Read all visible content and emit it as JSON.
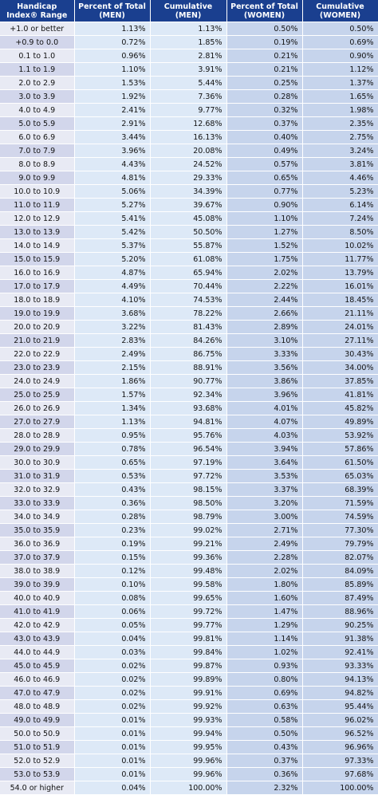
{
  "headers": {
    "range": "Handicap Index® Range",
    "pct_men": "Percent of Total (MEN)",
    "cum_men": "Cumulative (MEN)",
    "pct_women": "Percent of Total (WOMEN)",
    "cum_women": "Cumulative (WOMEN)"
  },
  "rows": [
    {
      "range": "+1.0 or better",
      "pct_men": "1.13%",
      "cum_men": "1.13%",
      "pct_women": "0.50%",
      "cum_women": "0.50%"
    },
    {
      "range": "+0.9 to 0.0",
      "pct_men": "0.72%",
      "cum_men": "1.85%",
      "pct_women": "0.19%",
      "cum_women": "0.69%"
    },
    {
      "range": "0.1 to 1.0",
      "pct_men": "0.96%",
      "cum_men": "2.81%",
      "pct_women": "0.21%",
      "cum_women": "0.90%"
    },
    {
      "range": "1.1 to 1.9",
      "pct_men": "1.10%",
      "cum_men": "3.91%",
      "pct_women": "0.21%",
      "cum_women": "1.12%"
    },
    {
      "range": "2.0 to 2.9",
      "pct_men": "1.53%",
      "cum_men": "5.44%",
      "pct_women": "0.25%",
      "cum_women": "1.37%"
    },
    {
      "range": "3.0 to 3.9",
      "pct_men": "1.92%",
      "cum_men": "7.36%",
      "pct_women": "0.28%",
      "cum_women": "1.65%"
    },
    {
      "range": "4.0 to 4.9",
      "pct_men": "2.41%",
      "cum_men": "9.77%",
      "pct_women": "0.32%",
      "cum_women": "1.98%"
    },
    {
      "range": "5.0 to 5.9",
      "pct_men": "2.91%",
      "cum_men": "12.68%",
      "pct_women": "0.37%",
      "cum_women": "2.35%"
    },
    {
      "range": "6.0 to 6.9",
      "pct_men": "3.44%",
      "cum_men": "16.13%",
      "pct_women": "0.40%",
      "cum_women": "2.75%"
    },
    {
      "range": "7.0 to 7.9",
      "pct_men": "3.96%",
      "cum_men": "20.08%",
      "pct_women": "0.49%",
      "cum_women": "3.24%"
    },
    {
      "range": "8.0 to 8.9",
      "pct_men": "4.43%",
      "cum_men": "24.52%",
      "pct_women": "0.57%",
      "cum_women": "3.81%"
    },
    {
      "range": "9.0 to 9.9",
      "pct_men": "4.81%",
      "cum_men": "29.33%",
      "pct_women": "0.65%",
      "cum_women": "4.46%"
    },
    {
      "range": "10.0 to 10.9",
      "pct_men": "5.06%",
      "cum_men": "34.39%",
      "pct_women": "0.77%",
      "cum_women": "5.23%"
    },
    {
      "range": "11.0 to 11.9",
      "pct_men": "5.27%",
      "cum_men": "39.67%",
      "pct_women": "0.90%",
      "cum_women": "6.14%"
    },
    {
      "range": "12.0 to 12.9",
      "pct_men": "5.41%",
      "cum_men": "45.08%",
      "pct_women": "1.10%",
      "cum_women": "7.24%"
    },
    {
      "range": "13.0 to 13.9",
      "pct_men": "5.42%",
      "cum_men": "50.50%",
      "pct_women": "1.27%",
      "cum_women": "8.50%"
    },
    {
      "range": "14.0 to 14.9",
      "pct_men": "5.37%",
      "cum_men": "55.87%",
      "pct_women": "1.52%",
      "cum_women": "10.02%"
    },
    {
      "range": "15.0 to 15.9",
      "pct_men": "5.20%",
      "cum_men": "61.08%",
      "pct_women": "1.75%",
      "cum_women": "11.77%"
    },
    {
      "range": "16.0 to 16.9",
      "pct_men": "4.87%",
      "cum_men": "65.94%",
      "pct_women": "2.02%",
      "cum_women": "13.79%"
    },
    {
      "range": "17.0 to 17.9",
      "pct_men": "4.49%",
      "cum_men": "70.44%",
      "pct_women": "2.22%",
      "cum_women": "16.01%"
    },
    {
      "range": "18.0 to 18.9",
      "pct_men": "4.10%",
      "cum_men": "74.53%",
      "pct_women": "2.44%",
      "cum_women": "18.45%"
    },
    {
      "range": "19.0 to 19.9",
      "pct_men": "3.68%",
      "cum_men": "78.22%",
      "pct_women": "2.66%",
      "cum_women": "21.11%"
    },
    {
      "range": "20.0 to 20.9",
      "pct_men": "3.22%",
      "cum_men": "81.43%",
      "pct_women": "2.89%",
      "cum_women": "24.01%"
    },
    {
      "range": "21.0 to 21.9",
      "pct_men": "2.83%",
      "cum_men": "84.26%",
      "pct_women": "3.10%",
      "cum_women": "27.11%"
    },
    {
      "range": "22.0 to 22.9",
      "pct_men": "2.49%",
      "cum_men": "86.75%",
      "pct_women": "3.33%",
      "cum_women": "30.43%"
    },
    {
      "range": "23.0 to 23.9",
      "pct_men": "2.15%",
      "cum_men": "88.91%",
      "pct_women": "3.56%",
      "cum_women": "34.00%"
    },
    {
      "range": "24.0 to 24.9",
      "pct_men": "1.86%",
      "cum_men": "90.77%",
      "pct_women": "3.86%",
      "cum_women": "37.85%"
    },
    {
      "range": "25.0 to 25.9",
      "pct_men": "1.57%",
      "cum_men": "92.34%",
      "pct_women": "3.96%",
      "cum_women": "41.81%"
    },
    {
      "range": "26.0 to 26.9",
      "pct_men": "1.34%",
      "cum_men": "93.68%",
      "pct_women": "4.01%",
      "cum_women": "45.82%"
    },
    {
      "range": "27.0 to 27.9",
      "pct_men": "1.13%",
      "cum_men": "94.81%",
      "pct_women": "4.07%",
      "cum_women": "49.89%"
    },
    {
      "range": "28.0 to 28.9",
      "pct_men": "0.95%",
      "cum_men": "95.76%",
      "pct_women": "4.03%",
      "cum_women": "53.92%"
    },
    {
      "range": "29.0 to 29.9",
      "pct_men": "0.78%",
      "cum_men": "96.54%",
      "pct_women": "3.94%",
      "cum_women": "57.86%"
    },
    {
      "range": "30.0 to 30.9",
      "pct_men": "0.65%",
      "cum_men": "97.19%",
      "pct_women": "3.64%",
      "cum_women": "61.50%"
    },
    {
      "range": "31.0 to 31.9",
      "pct_men": "0.53%",
      "cum_men": "97.72%",
      "pct_women": "3.53%",
      "cum_women": "65.03%"
    },
    {
      "range": "32.0 to 32.9",
      "pct_men": "0.43%",
      "cum_men": "98.15%",
      "pct_women": "3.37%",
      "cum_women": "68.39%"
    },
    {
      "range": "33.0 to 33.9",
      "pct_men": "0.36%",
      "cum_men": "98.50%",
      "pct_women": "3.20%",
      "cum_women": "71.59%"
    },
    {
      "range": "34.0 to 34.9",
      "pct_men": "0.28%",
      "cum_men": "98.79%",
      "pct_women": "3.00%",
      "cum_women": "74.59%"
    },
    {
      "range": "35.0 to 35.9",
      "pct_men": "0.23%",
      "cum_men": "99.02%",
      "pct_women": "2.71%",
      "cum_women": "77.30%"
    },
    {
      "range": "36.0 to 36.9",
      "pct_men": "0.19%",
      "cum_men": "99.21%",
      "pct_women": "2.49%",
      "cum_women": "79.79%"
    },
    {
      "range": "37.0 to 37.9",
      "pct_men": "0.15%",
      "cum_men": "99.36%",
      "pct_women": "2.28%",
      "cum_women": "82.07%"
    },
    {
      "range": "38.0 to 38.9",
      "pct_men": "0.12%",
      "cum_men": "99.48%",
      "pct_women": "2.02%",
      "cum_women": "84.09%"
    },
    {
      "range": "39.0 to 39.9",
      "pct_men": "0.10%",
      "cum_men": "99.58%",
      "pct_women": "1.80%",
      "cum_women": "85.89%"
    },
    {
      "range": "40.0 to 40.9",
      "pct_men": "0.08%",
      "cum_men": "99.65%",
      "pct_women": "1.60%",
      "cum_women": "87.49%"
    },
    {
      "range": "41.0 to 41.9",
      "pct_men": "0.06%",
      "cum_men": "99.72%",
      "pct_women": "1.47%",
      "cum_women": "88.96%"
    },
    {
      "range": "42.0 to 42.9",
      "pct_men": "0.05%",
      "cum_men": "99.77%",
      "pct_women": "1.29%",
      "cum_women": "90.25%"
    },
    {
      "range": "43.0 to 43.9",
      "pct_men": "0.04%",
      "cum_men": "99.81%",
      "pct_women": "1.14%",
      "cum_women": "91.38%"
    },
    {
      "range": "44.0 to 44.9",
      "pct_men": "0.03%",
      "cum_men": "99.84%",
      "pct_women": "1.02%",
      "cum_women": "92.41%"
    },
    {
      "range": "45.0 to 45.9",
      "pct_men": "0.02%",
      "cum_men": "99.87%",
      "pct_women": "0.93%",
      "cum_women": "93.33%"
    },
    {
      "range": "46.0 to 46.9",
      "pct_men": "0.02%",
      "cum_men": "99.89%",
      "pct_women": "0.80%",
      "cum_women": "94.13%"
    },
    {
      "range": "47.0 to 47.9",
      "pct_men": "0.02%",
      "cum_men": "99.91%",
      "pct_women": "0.69%",
      "cum_women": "94.82%"
    },
    {
      "range": "48.0 to 48.9",
      "pct_men": "0.02%",
      "cum_men": "99.92%",
      "pct_women": "0.63%",
      "cum_women": "95.44%"
    },
    {
      "range": "49.0 to 49.9",
      "pct_men": "0.01%",
      "cum_men": "99.93%",
      "pct_women": "0.58%",
      "cum_women": "96.02%"
    },
    {
      "range": "50.0 to 50.9",
      "pct_men": "0.01%",
      "cum_men": "99.94%",
      "pct_women": "0.50%",
      "cum_women": "96.52%"
    },
    {
      "range": "51.0 to 51.9",
      "pct_men": "0.01%",
      "cum_men": "99.95%",
      "pct_women": "0.43%",
      "cum_women": "96.96%"
    },
    {
      "range": "52.0 to 52.9",
      "pct_men": "0.01%",
      "cum_men": "99.96%",
      "pct_women": "0.37%",
      "cum_women": "97.33%"
    },
    {
      "range": "53.0 to 53.9",
      "pct_men": "0.01%",
      "cum_men": "99.96%",
      "pct_women": "0.36%",
      "cum_women": "97.68%"
    },
    {
      "range": "54.0 or higher",
      "pct_men": "0.04%",
      "cum_men": "100.00%",
      "pct_women": "2.32%",
      "cum_women": "100.00%"
    }
  ]
}
